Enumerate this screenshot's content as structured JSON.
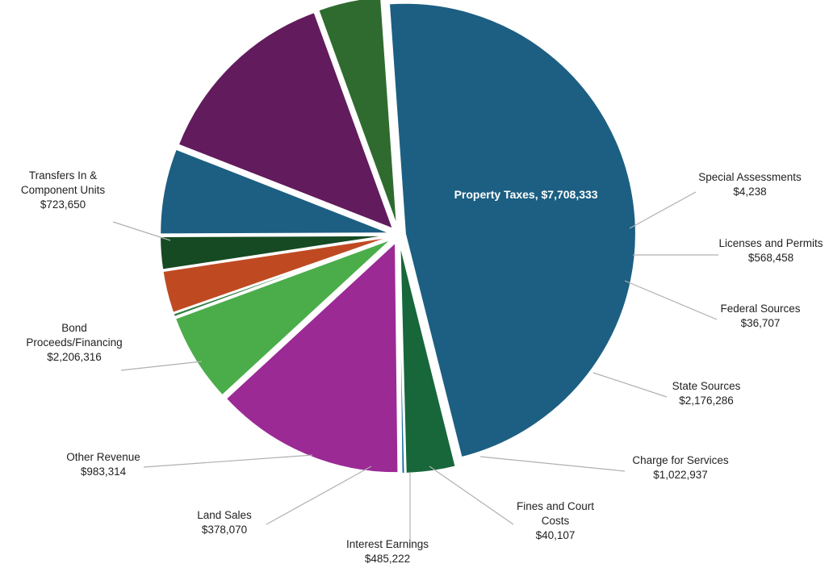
{
  "chart_data": {
    "type": "pie",
    "title": "",
    "start_angle_deg": -4,
    "direction": "clockwise",
    "slices": [
      {
        "label": "Property Taxes",
        "display": "Property Taxes, $7,708,333",
        "value_text": "",
        "value": 7708333,
        "color": "#1c5f82",
        "label_inside": true
      },
      {
        "label": "Special Assessments",
        "display": "Special Assessments",
        "value_text": "$4,238",
        "value": 4238,
        "color": "#1f6b3a"
      },
      {
        "label": "Licenses and Permits",
        "display": "Licenses and Permits",
        "value_text": "$568,458",
        "value": 568458,
        "color": "#17673a"
      },
      {
        "label": "Federal Sources",
        "display": "Federal Sources",
        "value_text": "$36,707",
        "value": 36707,
        "color": "#1a6fa0"
      },
      {
        "label": "State Sources",
        "display": "State Sources",
        "value_text": "$2,176,286",
        "value": 2176286,
        "color": "#9b2a95"
      },
      {
        "label": "Charge for Services",
        "display": "Charge for Services",
        "value_text": "$1,022,937",
        "value": 1022937,
        "color": "#4aad4a"
      },
      {
        "label": "Fines and Court Costs",
        "display": "Fines and Court|Costs",
        "value_text": "$40,107",
        "value": 40107,
        "color": "#2f7f3f"
      },
      {
        "label": "Interest Earnings",
        "display": "Interest Earnings",
        "value_text": "$485,222",
        "value": 485222,
        "color": "#bf4a22"
      },
      {
        "label": "Land Sales",
        "display": "Land Sales",
        "value_text": "$378,070",
        "value": 378070,
        "color": "#154a22"
      },
      {
        "label": "Other Revenue",
        "display": "Other Revenue",
        "value_text": "$983,314",
        "value": 983314,
        "color": "#1c5f82"
      },
      {
        "label": "Bond Proceeds/Financing",
        "display": "Bond|Proceeds/Financing",
        "value_text": "$2,206,316",
        "value": 2206316,
        "color": "#621b5c"
      },
      {
        "label": "Transfers In & Component Units",
        "display": "Transfers In &|Component Units",
        "value_text": "$723,650",
        "value": 723650,
        "color": "#2f6b2e"
      }
    ]
  }
}
